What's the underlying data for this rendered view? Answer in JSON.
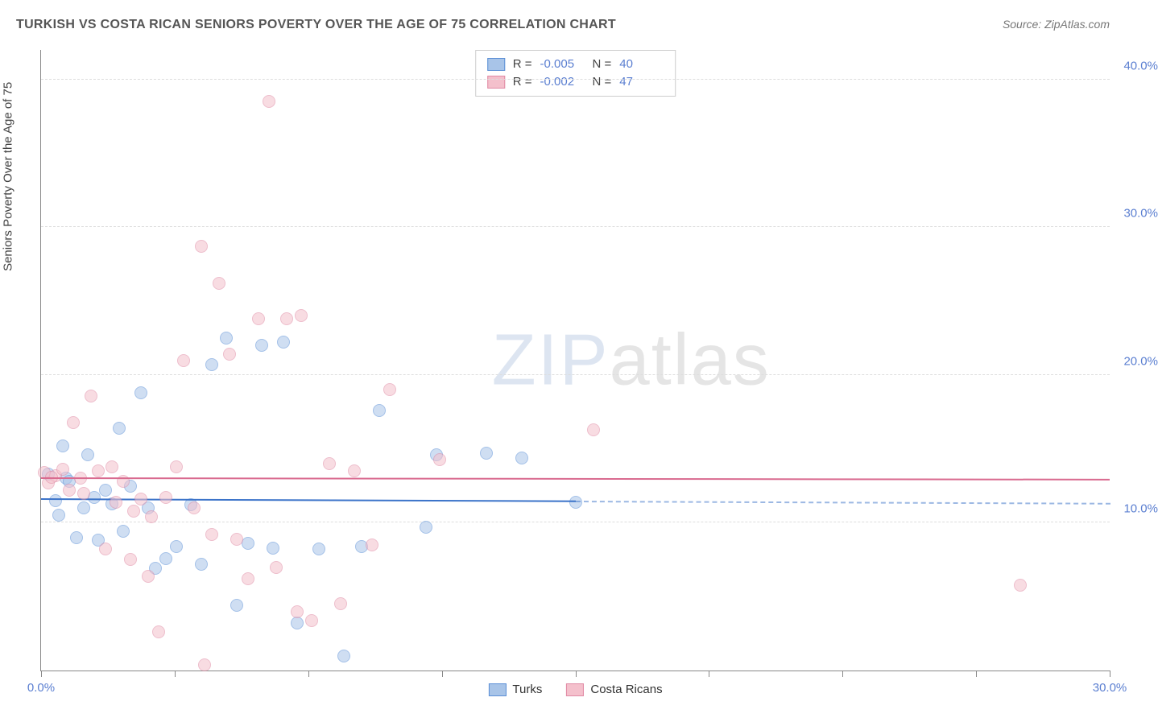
{
  "title": "TURKISH VS COSTA RICAN SENIORS POVERTY OVER THE AGE OF 75 CORRELATION CHART",
  "source": "Source: ZipAtlas.com",
  "y_axis_label": "Seniors Poverty Over the Age of 75",
  "watermark_z": "ZIP",
  "watermark_rest": "atlas",
  "chart": {
    "type": "scatter",
    "xlim": [
      0,
      30
    ],
    "ylim": [
      0,
      42
    ],
    "x_ticks": [
      0,
      3.75,
      7.5,
      11.25,
      15,
      18.75,
      22.5,
      26.25,
      30
    ],
    "x_tick_labels": {
      "0": "0.0%",
      "30": "30.0%"
    },
    "y_ticks": [
      10,
      20,
      30,
      40
    ],
    "y_tick_labels": {
      "10": "10.0%",
      "20": "20.0%",
      "30": "30.0%",
      "40": "40.0%"
    },
    "background_color": "#ffffff",
    "grid_color": "#dddddd",
    "point_radius": 8,
    "point_opacity": 0.55,
    "series": [
      {
        "name": "Turks",
        "fill": "#a8c4e8",
        "stroke": "#5b8fd6",
        "R": "-0.005",
        "N": "40",
        "trend": {
          "y_start": 11.6,
          "y_end": 11.3,
          "solid_until_x": 15,
          "color": "#3b73c9"
        },
        "points": [
          [
            0.2,
            13.3
          ],
          [
            0.4,
            11.5
          ],
          [
            0.5,
            10.5
          ],
          [
            0.6,
            15.2
          ],
          [
            0.7,
            13.0
          ],
          [
            0.8,
            12.8
          ],
          [
            1.0,
            9.0
          ],
          [
            1.2,
            11.0
          ],
          [
            1.3,
            14.6
          ],
          [
            1.5,
            11.7
          ],
          [
            1.6,
            8.8
          ],
          [
            1.8,
            12.2
          ],
          [
            2.0,
            11.3
          ],
          [
            2.2,
            16.4
          ],
          [
            2.3,
            9.4
          ],
          [
            2.5,
            12.5
          ],
          [
            2.8,
            18.8
          ],
          [
            3.0,
            11.0
          ],
          [
            3.2,
            6.9
          ],
          [
            3.5,
            7.6
          ],
          [
            3.8,
            8.4
          ],
          [
            4.2,
            11.2
          ],
          [
            4.5,
            7.2
          ],
          [
            4.8,
            20.7
          ],
          [
            5.2,
            22.5
          ],
          [
            5.5,
            4.4
          ],
          [
            5.8,
            8.6
          ],
          [
            6.2,
            22.0
          ],
          [
            6.5,
            8.3
          ],
          [
            6.8,
            22.2
          ],
          [
            7.2,
            3.2
          ],
          [
            7.8,
            8.2
          ],
          [
            8.5,
            1.0
          ],
          [
            9.0,
            8.4
          ],
          [
            9.5,
            17.6
          ],
          [
            10.8,
            9.7
          ],
          [
            11.1,
            14.6
          ],
          [
            12.5,
            14.7
          ],
          [
            13.5,
            14.4
          ],
          [
            15.0,
            11.4
          ]
        ]
      },
      {
        "name": "Costa Ricans",
        "fill": "#f4c0cc",
        "stroke": "#e08aa4",
        "R": "-0.002",
        "N": "47",
        "trend": {
          "y_start": 13.0,
          "y_end": 12.9,
          "solid_until_x": 30,
          "color": "#d96a8f"
        },
        "points": [
          [
            0.1,
            13.4
          ],
          [
            0.2,
            12.7
          ],
          [
            0.4,
            13.2
          ],
          [
            0.6,
            13.6
          ],
          [
            0.8,
            12.2
          ],
          [
            0.9,
            16.8
          ],
          [
            1.1,
            13.0
          ],
          [
            1.2,
            12.0
          ],
          [
            1.4,
            18.6
          ],
          [
            1.6,
            13.5
          ],
          [
            1.8,
            8.2
          ],
          [
            2.0,
            13.8
          ],
          [
            2.1,
            11.4
          ],
          [
            2.3,
            12.8
          ],
          [
            2.5,
            7.5
          ],
          [
            2.6,
            10.8
          ],
          [
            2.8,
            11.6
          ],
          [
            3.0,
            6.4
          ],
          [
            3.1,
            10.4
          ],
          [
            3.3,
            2.6
          ],
          [
            3.5,
            11.7
          ],
          [
            3.8,
            13.8
          ],
          [
            4.0,
            21.0
          ],
          [
            4.3,
            11.0
          ],
          [
            4.5,
            28.7
          ],
          [
            4.8,
            9.2
          ],
          [
            5.0,
            26.2
          ],
          [
            5.3,
            21.4
          ],
          [
            5.5,
            8.9
          ],
          [
            5.8,
            6.2
          ],
          [
            6.1,
            23.8
          ],
          [
            6.4,
            38.5
          ],
          [
            6.6,
            7.0
          ],
          [
            6.9,
            23.8
          ],
          [
            7.2,
            4.0
          ],
          [
            7.3,
            24.0
          ],
          [
            7.6,
            3.4
          ],
          [
            8.1,
            14.0
          ],
          [
            8.4,
            4.5
          ],
          [
            8.8,
            13.5
          ],
          [
            9.3,
            8.5
          ],
          [
            9.8,
            19.0
          ],
          [
            11.2,
            14.3
          ],
          [
            4.6,
            0.4
          ],
          [
            15.5,
            16.3
          ],
          [
            27.5,
            5.8
          ],
          [
            0.3,
            13.1
          ]
        ]
      }
    ],
    "corr_legend_labels": {
      "R": "R =",
      "N": "N ="
    },
    "series_legend_labels": [
      "Turks",
      "Costa Ricans"
    ]
  }
}
